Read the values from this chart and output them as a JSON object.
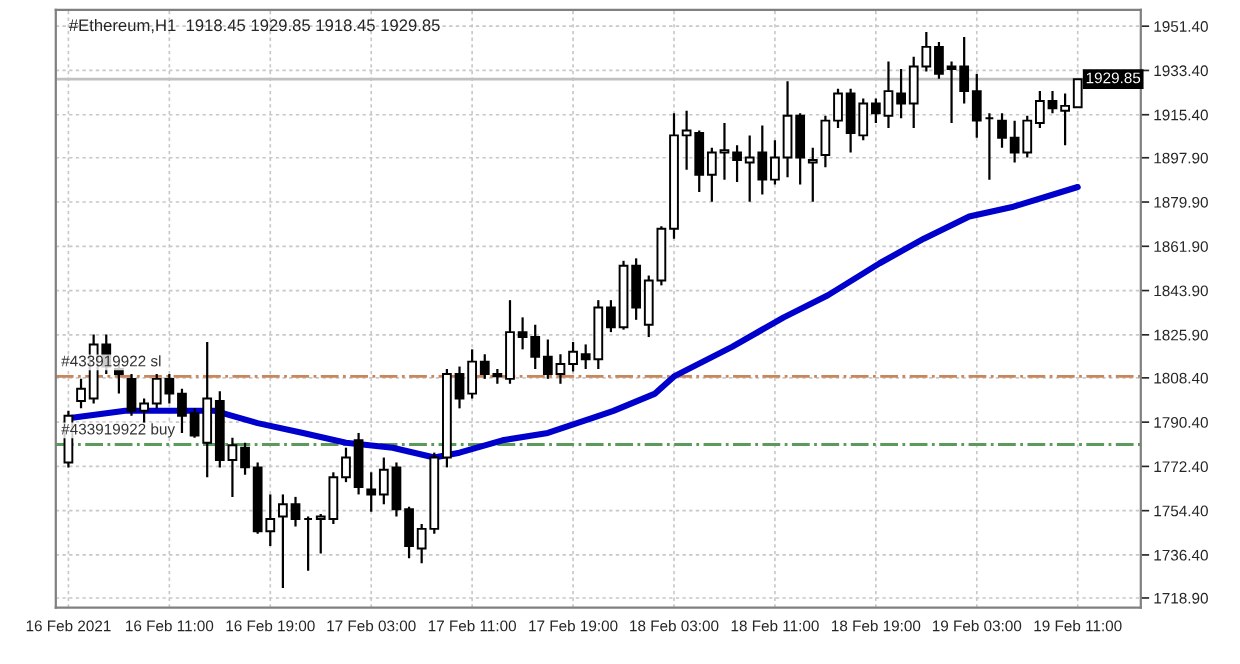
{
  "chart_data": {
    "type": "candlestick",
    "title": "#Ethereum,H1  1918.45 1929.85 1918.45 1929.85",
    "x": [
      "2021-02-16T03:00",
      "2021-02-16T04:00",
      "2021-02-16T05:00",
      "2021-02-16T06:00",
      "2021-02-16T07:00",
      "2021-02-16T08:00",
      "2021-02-16T09:00",
      "2021-02-16T10:00",
      "2021-02-16T11:00",
      "2021-02-16T12:00",
      "2021-02-16T13:00",
      "2021-02-16T14:00",
      "2021-02-16T15:00",
      "2021-02-16T16:00",
      "2021-02-16T17:00",
      "2021-02-16T18:00",
      "2021-02-16T19:00",
      "2021-02-16T20:00",
      "2021-02-16T21:00",
      "2021-02-16T22:00",
      "2021-02-16T23:00",
      "2021-02-17T00:00",
      "2021-02-17T01:00",
      "2021-02-17T02:00",
      "2021-02-17T03:00",
      "2021-02-17T04:00",
      "2021-02-17T05:00",
      "2021-02-17T06:00",
      "2021-02-17T07:00",
      "2021-02-17T08:00",
      "2021-02-17T09:00",
      "2021-02-17T10:00",
      "2021-02-17T11:00",
      "2021-02-17T12:00",
      "2021-02-17T13:00",
      "2021-02-17T14:00",
      "2021-02-17T15:00",
      "2021-02-17T16:00",
      "2021-02-17T17:00",
      "2021-02-17T18:00",
      "2021-02-17T19:00",
      "2021-02-17T20:00",
      "2021-02-17T21:00",
      "2021-02-17T22:00",
      "2021-02-17T23:00",
      "2021-02-18T00:00",
      "2021-02-18T01:00",
      "2021-02-18T02:00",
      "2021-02-18T03:00",
      "2021-02-18T04:00",
      "2021-02-18T05:00",
      "2021-02-18T06:00",
      "2021-02-18T07:00",
      "2021-02-18T08:00",
      "2021-02-18T09:00",
      "2021-02-18T10:00",
      "2021-02-18T11:00",
      "2021-02-18T12:00",
      "2021-02-18T13:00",
      "2021-02-18T14:00",
      "2021-02-18T15:00",
      "2021-02-18T16:00",
      "2021-02-18T17:00",
      "2021-02-18T18:00",
      "2021-02-18T19:00",
      "2021-02-18T20:00",
      "2021-02-18T21:00",
      "2021-02-18T22:00",
      "2021-02-18T23:00",
      "2021-02-19T00:00",
      "2021-02-19T01:00",
      "2021-02-19T02:00",
      "2021-02-19T03:00",
      "2021-02-19T04:00",
      "2021-02-19T05:00",
      "2021-02-19T06:00",
      "2021-02-19T07:00",
      "2021-02-19T08:00",
      "2021-02-19T09:00",
      "2021-02-19T10:00",
      "2021-02-19T11:00"
    ],
    "ohlc": [
      [
        1774,
        1795,
        1772,
        1793
      ],
      [
        1799,
        1808,
        1796,
        1804
      ],
      [
        1800,
        1826,
        1798,
        1822
      ],
      [
        1822,
        1826,
        1810,
        1813
      ],
      [
        1812,
        1814,
        1802,
        1810
      ],
      [
        1808,
        1810,
        1793,
        1795
      ],
      [
        1795,
        1800,
        1790,
        1798
      ],
      [
        1798,
        1810,
        1796,
        1808
      ],
      [
        1808,
        1810,
        1798,
        1802
      ],
      [
        1802,
        1804,
        1786,
        1793
      ],
      [
        1794,
        1796,
        1784,
        1785
      ],
      [
        1782,
        1823,
        1768,
        1800
      ],
      [
        1799,
        1803,
        1772,
        1775
      ],
      [
        1775,
        1784,
        1760,
        1781
      ],
      [
        1780,
        1782,
        1769,
        1772
      ],
      [
        1772,
        1774,
        1745,
        1746
      ],
      [
        1746,
        1761,
        1740,
        1751
      ],
      [
        1752,
        1761,
        1723,
        1757
      ],
      [
        1757,
        1760,
        1748,
        1751
      ],
      [
        1751,
        1752,
        1730,
        1751
      ],
      [
        1751,
        1753,
        1737,
        1752
      ],
      [
        1751,
        1770,
        1749,
        1768
      ],
      [
        1768,
        1780,
        1766,
        1776
      ],
      [
        1783,
        1786,
        1761,
        1764
      ],
      [
        1763,
        1770,
        1754,
        1761
      ],
      [
        1761,
        1776,
        1757,
        1771
      ],
      [
        1772,
        1774,
        1752,
        1755
      ],
      [
        1755,
        1756,
        1735,
        1740
      ],
      [
        1739,
        1749,
        1733,
        1747
      ],
      [
        1747,
        1778,
        1745,
        1776
      ],
      [
        1776,
        1812,
        1772,
        1810
      ],
      [
        1810,
        1813,
        1796,
        1800
      ],
      [
        1802,
        1820,
        1800,
        1815
      ],
      [
        1815,
        1818,
        1808,
        1810
      ],
      [
        1810,
        1812,
        1806,
        1809
      ],
      [
        1808,
        1840,
        1806,
        1827
      ],
      [
        1827,
        1833,
        1820,
        1825
      ],
      [
        1825,
        1830,
        1812,
        1817
      ],
      [
        1817,
        1824,
        1808,
        1810
      ],
      [
        1810,
        1818,
        1806,
        1814
      ],
      [
        1814,
        1823,
        1811,
        1819
      ],
      [
        1818,
        1822,
        1812,
        1816
      ],
      [
        1816,
        1840,
        1812,
        1837
      ],
      [
        1837,
        1840,
        1827,
        1829
      ],
      [
        1829,
        1856,
        1828,
        1854
      ],
      [
        1854,
        1857,
        1832,
        1837
      ],
      [
        1830,
        1850,
        1825,
        1848
      ],
      [
        1848,
        1870,
        1846,
        1869
      ],
      [
        1869,
        1916,
        1865,
        1907
      ],
      [
        1907,
        1917,
        1893,
        1909
      ],
      [
        1908,
        1909,
        1884,
        1891
      ],
      [
        1891,
        1902,
        1880,
        1900
      ],
      [
        1900,
        1912,
        1889,
        1901
      ],
      [
        1900,
        1903,
        1888,
        1897
      ],
      [
        1896,
        1907,
        1880,
        1898
      ],
      [
        1900,
        1911,
        1883,
        1889
      ],
      [
        1889,
        1905,
        1887,
        1898
      ],
      [
        1898,
        1929,
        1890,
        1915
      ],
      [
        1915,
        1916,
        1887,
        1898
      ],
      [
        1896,
        1902,
        1880,
        1897
      ],
      [
        1899,
        1915,
        1894,
        1913
      ],
      [
        1913,
        1926,
        1910,
        1924
      ],
      [
        1924,
        1926,
        1900,
        1908
      ],
      [
        1907,
        1922,
        1905,
        1920
      ],
      [
        1920,
        1922,
        1912,
        1916
      ],
      [
        1915,
        1937,
        1910,
        1925
      ],
      [
        1924,
        1934,
        1914,
        1920
      ],
      [
        1920,
        1939,
        1910,
        1935
      ],
      [
        1935,
        1949,
        1933,
        1943
      ],
      [
        1943,
        1945,
        1930,
        1932
      ],
      [
        1935,
        1937,
        1912,
        1934
      ],
      [
        1935,
        1947,
        1920,
        1925
      ],
      [
        1925,
        1932,
        1906,
        1913
      ],
      [
        1914,
        1916,
        1889,
        1914
      ],
      [
        1913,
        1916,
        1902,
        1906
      ],
      [
        1906,
        1913,
        1896,
        1900
      ],
      [
        1900,
        1915,
        1898,
        1913
      ],
      [
        1912,
        1925,
        1910,
        1921
      ],
      [
        1921,
        1925,
        1916,
        1918
      ],
      [
        1917,
        1924,
        1903,
        1919
      ],
      [
        1918.45,
        1929.85,
        1918.45,
        1929.85
      ]
    ],
    "series": [
      {
        "type": "line",
        "color": "#0000cc",
        "x": [
          "2021-02-16T03:00",
          "2021-02-16T07:30",
          "2021-02-16T11:00",
          "2021-02-16T14:36",
          "2021-02-16T18:00",
          "2021-02-16T21:36",
          "2021-02-17T01:00",
          "2021-02-17T04:42",
          "2021-02-17T08:00",
          "2021-02-17T10:00",
          "2021-02-17T13:24",
          "2021-02-17T17:00",
          "2021-02-17T20:30",
          "2021-02-17T22:12",
          "2021-02-18T01:30",
          "2021-02-18T03:00",
          "2021-02-18T07:36",
          "2021-02-18T11:42",
          "2021-02-18T15:12",
          "2021-02-18T19:18",
          "2021-02-18T22:48",
          "2021-02-19T02:24",
          "2021-02-19T05:54",
          "2021-02-19T11:00"
        ],
        "values": [
          1792,
          1795,
          1795,
          1795,
          1790,
          1786,
          1782,
          1780,
          1776,
          1778,
          1783,
          1786,
          1792,
          1795,
          1802,
          1809,
          1821,
          1833,
          1842,
          1855,
          1865,
          1874,
          1878,
          1886
        ]
      }
    ],
    "xlim": [
      "2021-02-16T02:00",
      "2021-02-19T16:00"
    ],
    "ylim": [
      1715,
      1958
    ],
    "xticks": [
      {
        "value": "2021-02-16T03:00",
        "label": "16 Feb 2021"
      },
      {
        "value": "2021-02-16T11:00",
        "label": "16 Feb 11:00"
      },
      {
        "value": "2021-02-16T19:00",
        "label": "16 Feb 19:00"
      },
      {
        "value": "2021-02-17T03:00",
        "label": "17 Feb 03:00"
      },
      {
        "value": "2021-02-17T11:00",
        "label": "17 Feb 11:00"
      },
      {
        "value": "2021-02-17T19:00",
        "label": "17 Feb 19:00"
      },
      {
        "value": "2021-02-18T03:00",
        "label": "18 Feb 03:00"
      },
      {
        "value": "2021-02-18T11:00",
        "label": "18 Feb 11:00"
      },
      {
        "value": "2021-02-18T19:00",
        "label": "18 Feb 19:00"
      },
      {
        "value": "2021-02-19T03:00",
        "label": "19 Feb 03:00"
      },
      {
        "value": "2021-02-19T11:00",
        "label": "19 Feb 11:00"
      }
    ],
    "yticks": [
      {
        "value": 1951.4,
        "label": "1951.40"
      },
      {
        "value": 1933.4,
        "label": "1933.40"
      },
      {
        "value": 1915.4,
        "label": "1915.40"
      },
      {
        "value": 1897.9,
        "label": "1897.90"
      },
      {
        "value": 1879.9,
        "label": "1879.90"
      },
      {
        "value": 1861.9,
        "label": "1861.90"
      },
      {
        "value": 1843.9,
        "label": "1843.90"
      },
      {
        "value": 1825.9,
        "label": "1825.90"
      },
      {
        "value": 1808.4,
        "label": "1808.40"
      },
      {
        "value": 1790.4,
        "label": "1790.40"
      },
      {
        "value": 1772.4,
        "label": "1772.40"
      },
      {
        "value": 1754.4,
        "label": "1754.40"
      },
      {
        "value": 1736.4,
        "label": "1736.40"
      },
      {
        "value": 1718.9,
        "label": "1718.90"
      }
    ],
    "ref_lines": [
      {
        "axis": "y",
        "value": 1809,
        "label": "#433919922 sl",
        "color": "#c8865a",
        "line_style": "dashdot"
      },
      {
        "axis": "y",
        "value": 1781.3,
        "label": "#433919922 buy",
        "color": "#5a9a5a",
        "line_style": "dashdot"
      },
      {
        "axis": "y",
        "value": 1929.85,
        "label": "1929.85",
        "color": "#c0c0c0",
        "line_style": "solid"
      }
    ],
    "grid": true,
    "legend": false
  }
}
